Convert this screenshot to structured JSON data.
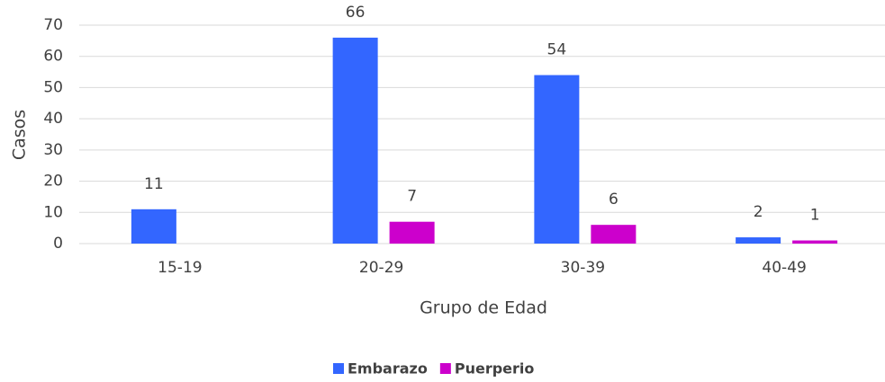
{
  "chart_data": {
    "type": "bar",
    "categories": [
      "15-19",
      "20-29",
      "30-39",
      "40-49"
    ],
    "series": [
      {
        "name": "Embarazo",
        "color": "#3366ff",
        "values": [
          11,
          66,
          54,
          2
        ]
      },
      {
        "name": "Puerperio",
        "color": "#cc00cc",
        "values": [
          null,
          7,
          6,
          1
        ]
      }
    ],
    "xlabel": "Grupo de Edad",
    "ylabel": "Casos",
    "ylim": [
      0,
      70
    ],
    "yticks": [
      0,
      10,
      20,
      30,
      40,
      50,
      60,
      70
    ],
    "grid": true,
    "legend": "bottom"
  }
}
